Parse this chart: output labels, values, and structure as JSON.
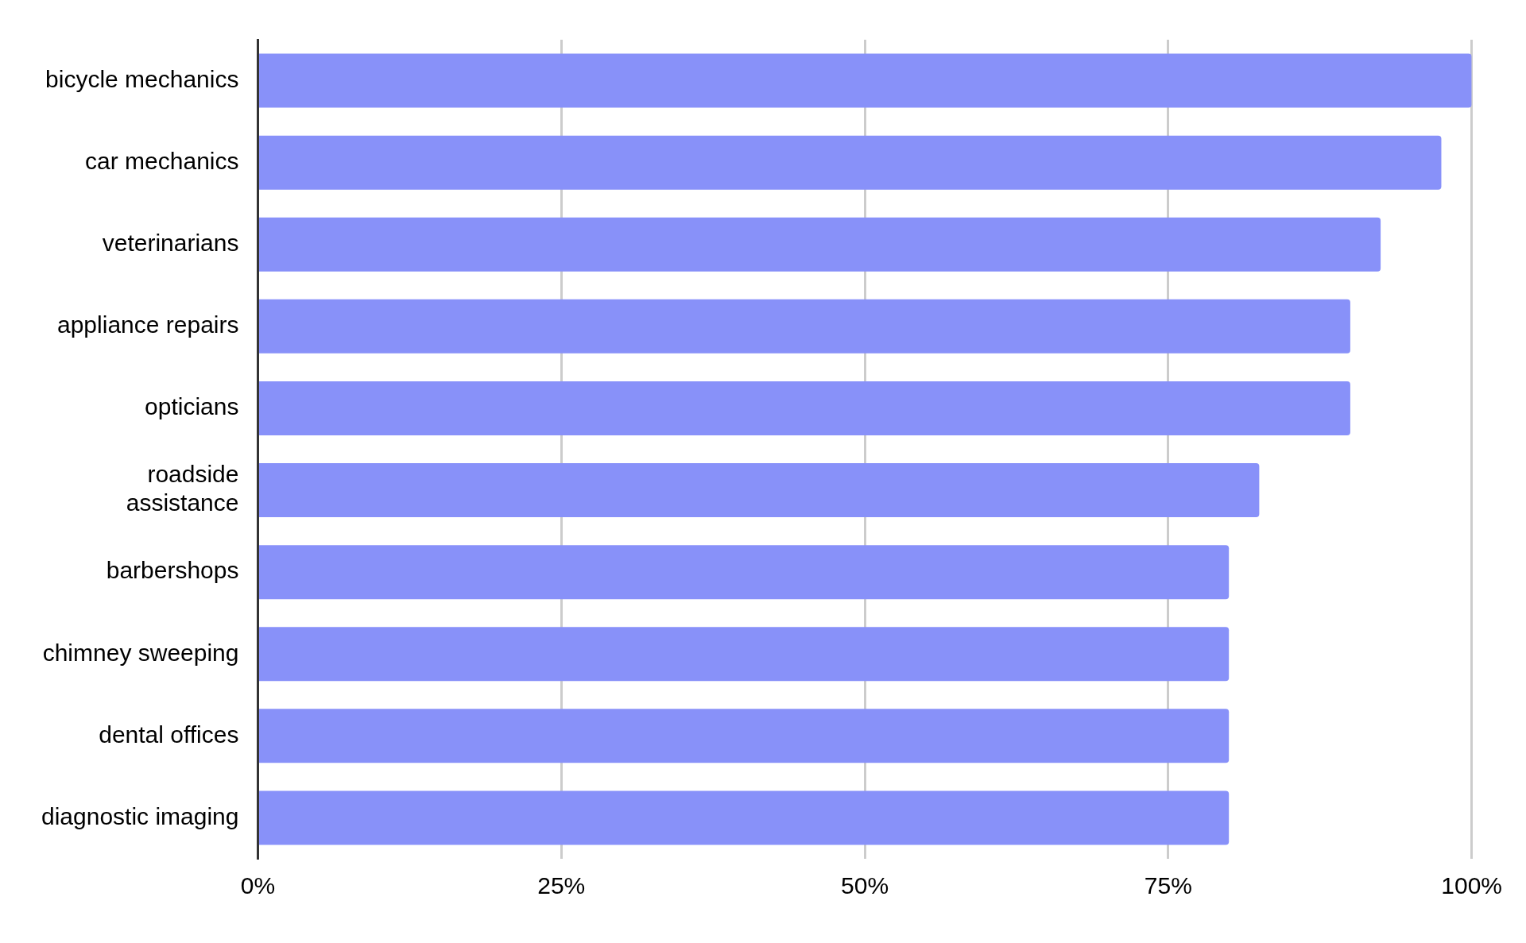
{
  "chart_data": {
    "type": "bar",
    "orientation": "horizontal",
    "categories": [
      "bicycle mechanics",
      "car mechanics",
      "veterinarians",
      "appliance repairs",
      "opticians",
      "roadside assistance",
      "barbershops",
      "chimney sweeping",
      "dental offices",
      "diagnostic imaging"
    ],
    "values": [
      100,
      97.5,
      92.5,
      90,
      90,
      82.5,
      80,
      80,
      80,
      80
    ],
    "color": "#8891f9",
    "xlim": [
      0,
      100
    ],
    "xticks": [
      {
        "value": 0,
        "label": "0%"
      },
      {
        "value": 25,
        "label": "25%"
      },
      {
        "value": 50,
        "label": "50%"
      },
      {
        "value": 75,
        "label": "75%"
      },
      {
        "value": 100,
        "label": "100%"
      }
    ],
    "grid": "x",
    "legend": false
  }
}
